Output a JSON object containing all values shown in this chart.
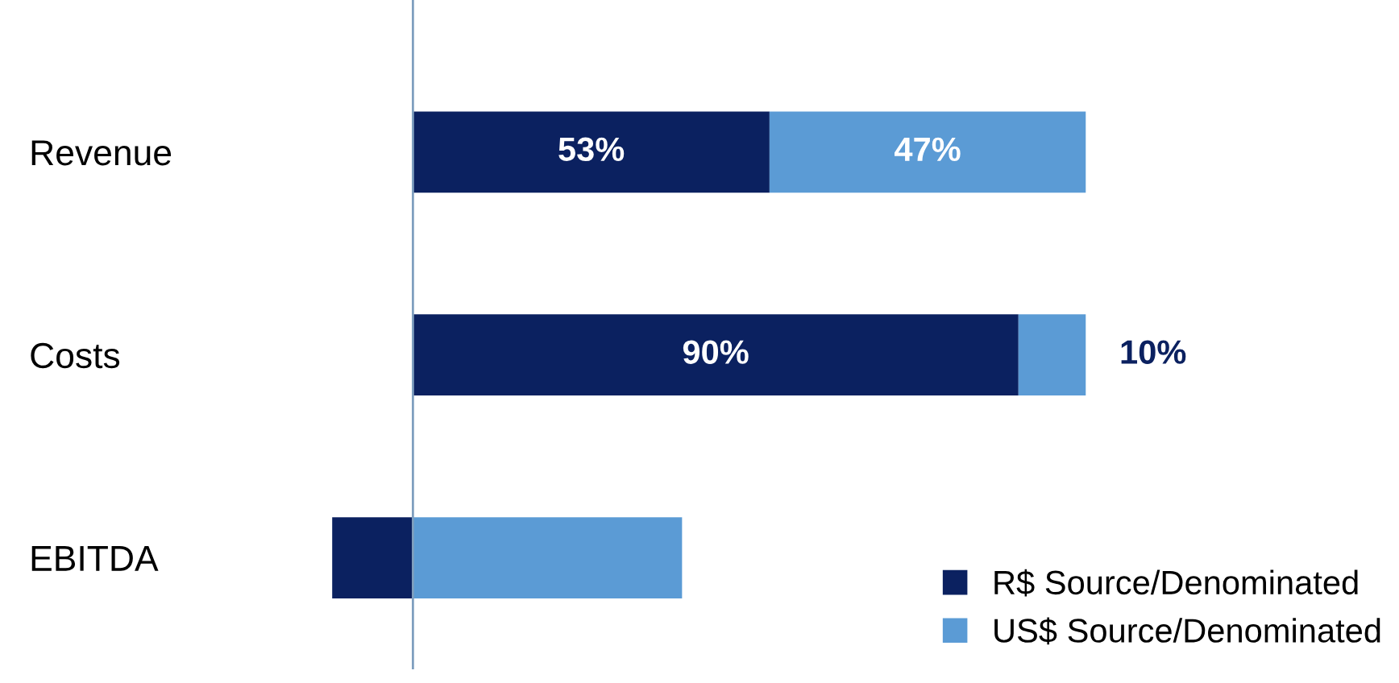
{
  "chart_data": {
    "type": "bar",
    "orientation": "horizontal",
    "stacked": true,
    "categories": [
      "Revenue",
      "Costs",
      "EBITDA"
    ],
    "series": [
      {
        "name": "R$ Source/Denominated",
        "color": "#0b2160",
        "values": [
          53,
          90,
          -12
        ],
        "value_labels": [
          "53%",
          "90%",
          null
        ]
      },
      {
        "name": "US$ Source/Denominated",
        "color": "#5b9bd5",
        "values": [
          47,
          10,
          40
        ],
        "value_labels": [
          "47%",
          "10%",
          null
        ]
      }
    ],
    "ref_lines": [
      {
        "axis": "x",
        "value": 0,
        "color": "#7f9fbf"
      }
    ],
    "legend": "bottom right",
    "grid": false,
    "tick_labels": "y"
  }
}
